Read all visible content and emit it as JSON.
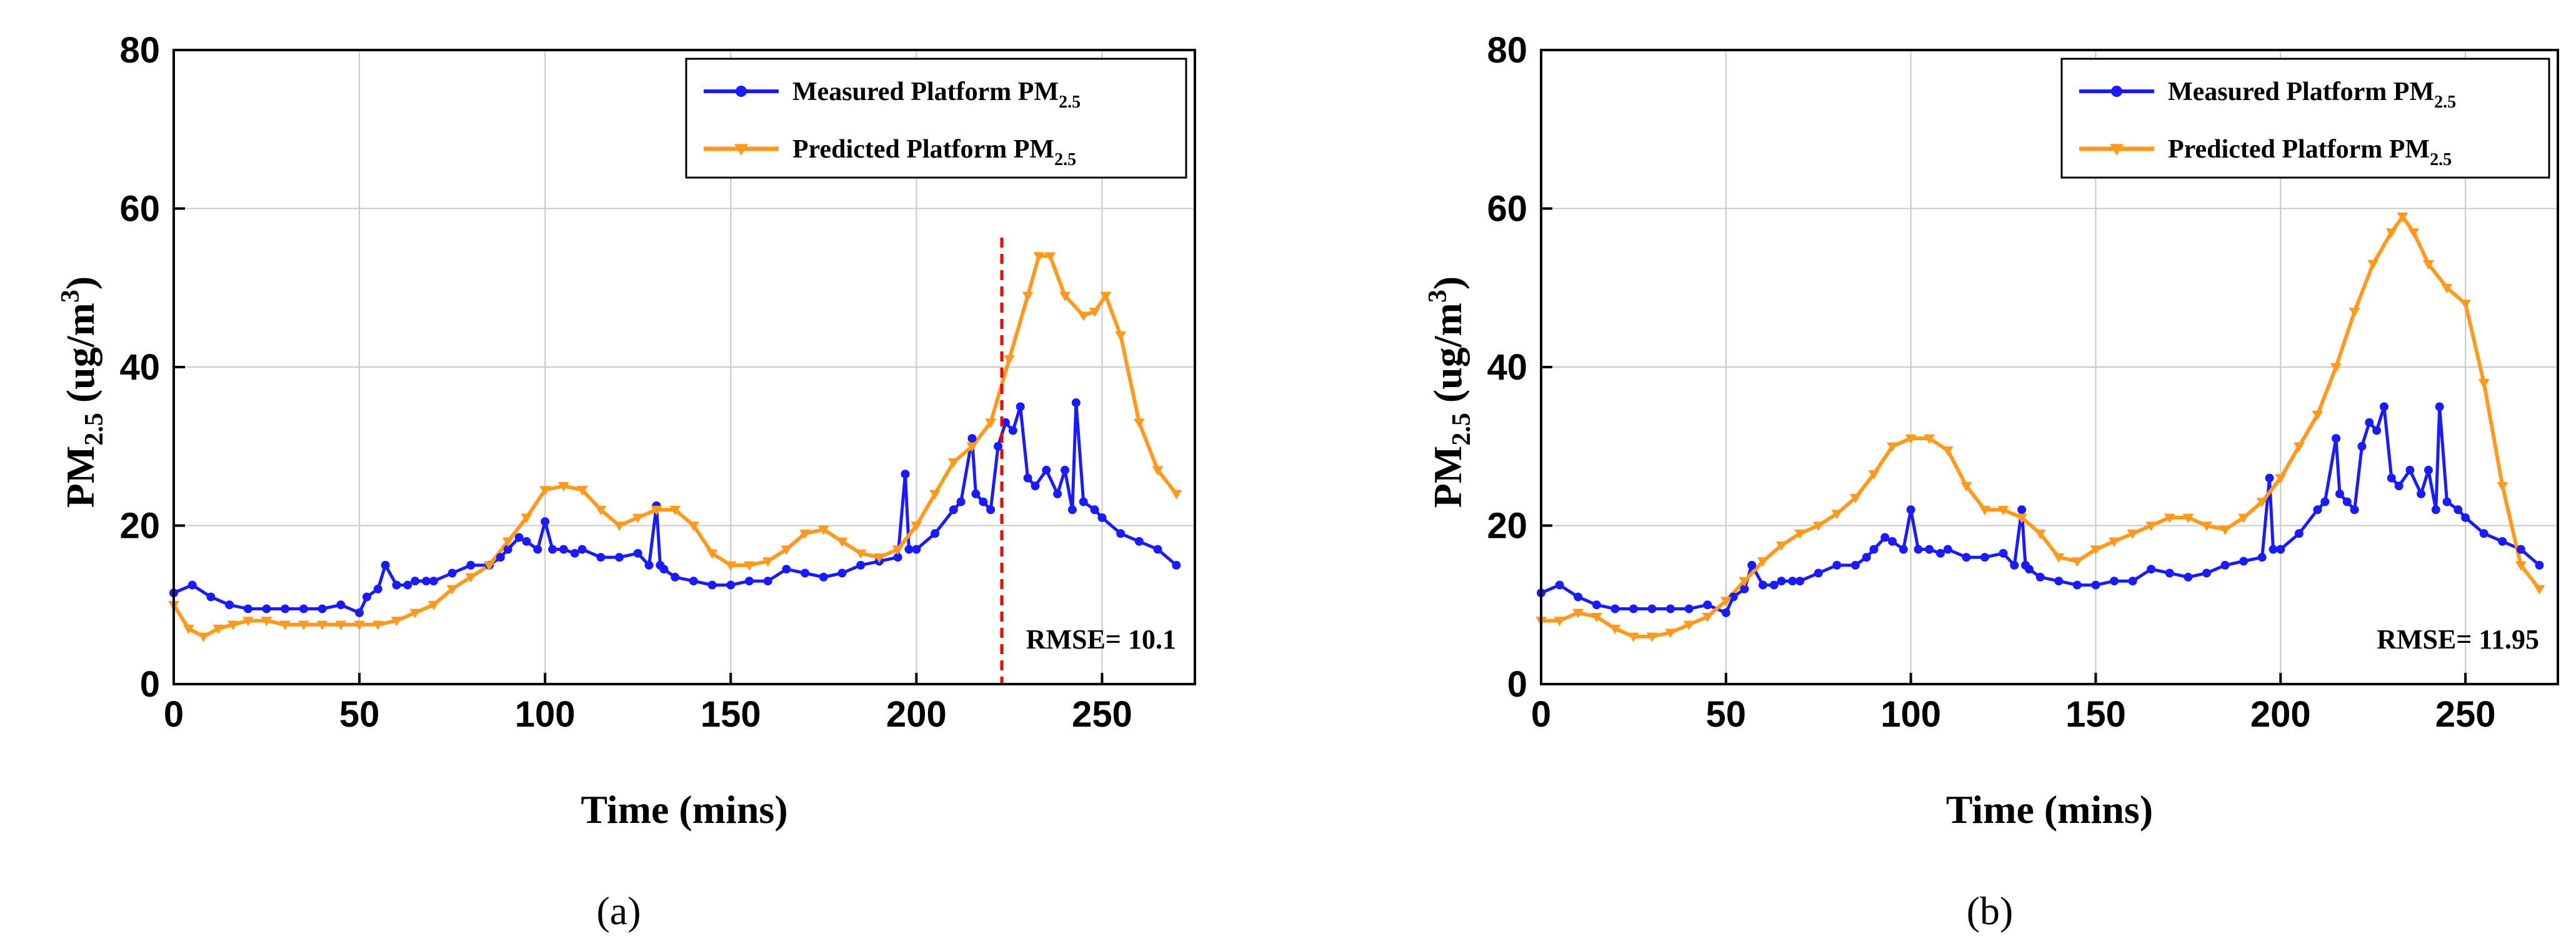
{
  "figure": {
    "panel_labels": [
      "(a)",
      "(b)"
    ]
  },
  "chart_data": [
    {
      "type": "line",
      "panel": "(a)",
      "title": "",
      "xlabel": "Time (mins)",
      "ylabel": "PM2.5 (ug/m3)",
      "xlim": [
        0,
        275
      ],
      "ylim": [
        0,
        80
      ],
      "xticks": [
        0,
        50,
        100,
        150,
        200,
        250
      ],
      "yticks": [
        0,
        20,
        40,
        60,
        80
      ],
      "grid": true,
      "legend_position": "top-right",
      "annotation": "RMSE= 10.1",
      "vertical_marker_x": 223,
      "colors": {
        "measured": "#1a1aff",
        "predicted": "#ff9a1f",
        "marker": "#ff0000"
      },
      "series": [
        {
          "name": "Measured Platform PM2.5",
          "legend_main": "Measured Platform PM",
          "legend_sub": "2.5",
          "marker": "circle",
          "x": [
            0,
            5,
            10,
            15,
            20,
            25,
            30,
            35,
            40,
            45,
            50,
            52,
            55,
            57,
            60,
            63,
            65,
            68,
            70,
            75,
            80,
            85,
            88,
            90,
            93,
            95,
            98,
            100,
            102,
            105,
            108,
            110,
            115,
            120,
            125,
            128,
            130,
            131,
            132,
            135,
            140,
            145,
            150,
            155,
            160,
            165,
            170,
            175,
            180,
            185,
            190,
            195,
            197,
            198,
            200,
            205,
            210,
            212,
            215,
            216,
            218,
            220,
            222,
            224,
            226,
            228,
            230,
            232,
            235,
            238,
            240,
            242,
            243,
            245,
            248,
            250,
            255,
            260,
            265,
            270
          ],
          "values": [
            11.5,
            12.5,
            11,
            10,
            9.5,
            9.5,
            9.5,
            9.5,
            9.5,
            10,
            9,
            11,
            12,
            15,
            12.5,
            12.5,
            13,
            13,
            13,
            14,
            15,
            15,
            16,
            17,
            18.5,
            18,
            17,
            20.5,
            17,
            17,
            16.5,
            17,
            16,
            16,
            16.5,
            15,
            22.5,
            15,
            14.5,
            13.5,
            13,
            12.5,
            12.5,
            13,
            13,
            14.5,
            14,
            13.5,
            14,
            15,
            15.5,
            16,
            26.5,
            17,
            17,
            19,
            22,
            23,
            31,
            24,
            23,
            22,
            30,
            33,
            32,
            35,
            26,
            25,
            27,
            24,
            27,
            22,
            35.5,
            23,
            22,
            21,
            19,
            18,
            17,
            15
          ]
        },
        {
          "name": "Predicted Platform PM2.5",
          "legend_main": "Predicted Platform PM",
          "legend_sub": "2.5",
          "marker": "triangle-down",
          "x": [
            0,
            4,
            8,
            12,
            16,
            20,
            25,
            30,
            35,
            40,
            45,
            50,
            55,
            60,
            65,
            70,
            75,
            80,
            85,
            90,
            95,
            100,
            105,
            110,
            115,
            120,
            125,
            130,
            135,
            140,
            145,
            150,
            155,
            160,
            165,
            170,
            175,
            180,
            185,
            190,
            195,
            200,
            205,
            210,
            215,
            220,
            225,
            230,
            233,
            236,
            240,
            245,
            248,
            251,
            255,
            260,
            265,
            270
          ],
          "values": [
            10,
            7,
            6,
            7,
            7.5,
            8,
            8,
            7.5,
            7.5,
            7.5,
            7.5,
            7.5,
            7.5,
            8,
            9,
            10,
            12,
            13.5,
            15,
            18,
            21,
            24.5,
            25,
            24.5,
            22,
            20,
            21,
            22,
            22,
            20,
            16.5,
            15,
            15,
            15.5,
            17,
            19,
            19.5,
            18,
            16.5,
            16,
            17,
            20,
            24,
            28,
            30,
            33,
            41,
            49,
            54,
            54,
            49,
            46.5,
            47,
            49,
            44,
            33,
            27,
            24
          ]
        }
      ]
    },
    {
      "type": "line",
      "panel": "(b)",
      "title": "",
      "xlabel": "Time (mins)",
      "ylabel": "PM2.5 (ug/m3)",
      "xlim": [
        0,
        275
      ],
      "ylim": [
        0,
        80
      ],
      "xticks": [
        0,
        50,
        100,
        150,
        200,
        250
      ],
      "yticks": [
        0,
        20,
        40,
        60,
        80
      ],
      "grid": true,
      "legend_position": "top-right",
      "annotation": "RMSE= 11.95",
      "colors": {
        "measured": "#1a1aff",
        "predicted": "#ff9a1f"
      },
      "series": [
        {
          "name": "Measured Platform PM2.5",
          "legend_main": "Measured Platform PM",
          "legend_sub": "2.5",
          "marker": "circle",
          "x": [
            0,
            5,
            10,
            15,
            20,
            25,
            30,
            35,
            40,
            45,
            50,
            52,
            55,
            57,
            60,
            63,
            65,
            68,
            70,
            75,
            80,
            85,
            88,
            90,
            93,
            95,
            98,
            100,
            102,
            105,
            108,
            110,
            115,
            120,
            125,
            128,
            130,
            131,
            132,
            135,
            140,
            145,
            150,
            155,
            160,
            165,
            170,
            175,
            180,
            185,
            190,
            195,
            197,
            198,
            200,
            205,
            210,
            212,
            215,
            216,
            218,
            220,
            222,
            224,
            226,
            228,
            230,
            232,
            235,
            238,
            240,
            242,
            243,
            245,
            248,
            250,
            255,
            260,
            265,
            270
          ],
          "values": [
            11.5,
            12.5,
            11,
            10,
            9.5,
            9.5,
            9.5,
            9.5,
            9.5,
            10,
            9,
            11,
            12,
            15,
            12.5,
            12.5,
            13,
            13,
            13,
            14,
            15,
            15,
            16,
            17,
            18.5,
            18,
            17,
            22,
            17,
            17,
            16.5,
            17,
            16,
            16,
            16.5,
            15,
            22,
            15,
            14.5,
            13.5,
            13,
            12.5,
            12.5,
            13,
            13,
            14.5,
            14,
            13.5,
            14,
            15,
            15.5,
            16,
            26,
            17,
            17,
            19,
            22,
            23,
            31,
            24,
            23,
            22,
            30,
            33,
            32,
            35,
            26,
            25,
            27,
            24,
            27,
            22,
            35,
            23,
            22,
            21,
            19,
            18,
            17,
            15
          ]
        },
        {
          "name": "Predicted Platform PM2.5",
          "legend_main": "Predicted Platform PM",
          "legend_sub": "2.5",
          "marker": "triangle-down",
          "x": [
            0,
            5,
            10,
            15,
            20,
            25,
            30,
            35,
            40,
            45,
            50,
            55,
            60,
            65,
            70,
            75,
            80,
            85,
            90,
            95,
            100,
            105,
            110,
            115,
            120,
            125,
            130,
            135,
            140,
            145,
            150,
            155,
            160,
            165,
            170,
            175,
            180,
            185,
            190,
            195,
            200,
            205,
            210,
            215,
            220,
            225,
            230,
            233,
            236,
            240,
            245,
            250,
            255,
            260,
            265,
            270
          ],
          "values": [
            8,
            8,
            9,
            8.5,
            7,
            6,
            6,
            6.5,
            7.5,
            8.5,
            10.5,
            13,
            15.5,
            17.5,
            19,
            20,
            21.5,
            23.5,
            26.5,
            30,
            31,
            31,
            29.5,
            25,
            22,
            22,
            21,
            19,
            16,
            15.5,
            17,
            18,
            19,
            20,
            21,
            21,
            20,
            19.5,
            21,
            23,
            26,
            30,
            34,
            40,
            47,
            53,
            57,
            59,
            57,
            53,
            50,
            48,
            38,
            25,
            15,
            12
          ]
        }
      ]
    }
  ]
}
